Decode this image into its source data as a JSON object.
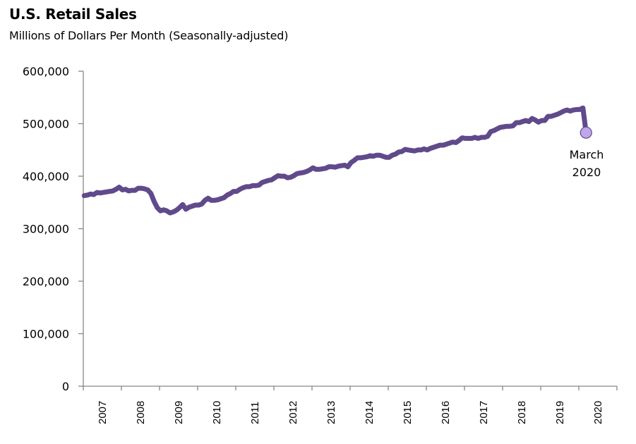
{
  "chart_data": {
    "type": "line",
    "title": "U.S. Retail Sales",
    "subtitle": "Millions of Dollars Per Month (Seasonally-adjusted)",
    "xlabel": "",
    "ylabel": "",
    "ylim": [
      0,
      600000
    ],
    "yticks": [
      0,
      100000,
      200000,
      300000,
      400000,
      500000,
      600000
    ],
    "ytick_labels": [
      "0",
      "100,000",
      "200,000",
      "300,000",
      "400,000",
      "500,000",
      "600,000"
    ],
    "x_start": "2007-01",
    "x_end": "2020-03",
    "xtick_labels": [
      "2007",
      "2008",
      "2009",
      "2010",
      "2011",
      "2012",
      "2013",
      "2014",
      "2015",
      "2016",
      "2017",
      "2018",
      "2019",
      "2020"
    ],
    "grid": false,
    "legend": "none",
    "colors": {
      "line": "#604a8b",
      "marker_fill": "#bfa6ea",
      "marker_stroke": "#604a8b",
      "axis": "#878787"
    },
    "series": [
      {
        "name": "U.S. Retail Sales",
        "start": "2007-01",
        "frequency": "monthly",
        "values": [
          363000,
          364000,
          366000,
          365000,
          369000,
          368000,
          369000,
          370000,
          371000,
          372000,
          375000,
          379000,
          374000,
          375000,
          372000,
          373000,
          373000,
          377000,
          377000,
          376000,
          374000,
          367000,
          352000,
          340000,
          334000,
          336000,
          334000,
          330000,
          332000,
          335000,
          340000,
          346000,
          337000,
          341000,
          343000,
          345000,
          345000,
          347000,
          354000,
          358000,
          354000,
          354000,
          355000,
          357000,
          359000,
          364000,
          367000,
          371000,
          371000,
          375000,
          378000,
          380000,
          380000,
          382000,
          382000,
          383000,
          388000,
          390000,
          392000,
          393000,
          397000,
          401000,
          400000,
          400000,
          397000,
          398000,
          401000,
          405000,
          406000,
          407000,
          409000,
          412000,
          416000,
          413000,
          413000,
          414000,
          415000,
          418000,
          418000,
          417000,
          419000,
          420000,
          421000,
          418000,
          426000,
          430000,
          435000,
          435000,
          436000,
          437000,
          439000,
          438000,
          440000,
          440000,
          438000,
          436000,
          436000,
          440000,
          442000,
          446000,
          447000,
          451000,
          450000,
          449000,
          448000,
          450000,
          450000,
          452000,
          450000,
          453000,
          455000,
          457000,
          459000,
          459000,
          461000,
          463000,
          465000,
          464000,
          468000,
          473000,
          472000,
          472000,
          472000,
          474000,
          472000,
          474000,
          474000,
          476000,
          485000,
          487000,
          490000,
          493000,
          494000,
          495000,
          495000,
          496000,
          502000,
          502000,
          504000,
          506000,
          504000,
          510000,
          507000,
          503000,
          506000,
          506000,
          514000,
          514000,
          516000,
          518000,
          521000,
          524000,
          526000,
          524000,
          526000,
          527000,
          527000,
          530000,
          483000
        ]
      }
    ],
    "annotations": [
      {
        "label_line1": "March",
        "label_line2": "2020",
        "x": "2020-03",
        "y": 483000
      }
    ]
  }
}
